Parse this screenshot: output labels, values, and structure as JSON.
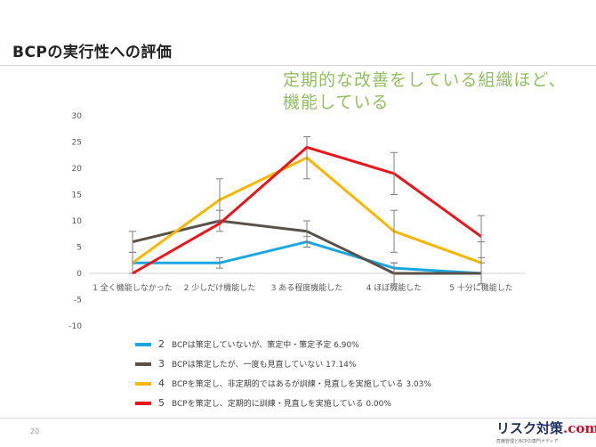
{
  "slide": {
    "title": "BCPの実行性への評価",
    "callout_line1": "定期的な改善をしている組織ほど、",
    "callout_line2": "機能している",
    "callout_color": "#8fbf5f",
    "page_number": "20"
  },
  "logo": {
    "main": "リスク対策",
    "suffix": ".com",
    "sub": "危機管理とBCPの専門メディア"
  },
  "chart_data": {
    "type": "line",
    "categories": [
      "1 全く機能しなかった",
      "2 少しだけ機能した",
      "3 ある程度機能した",
      "4 ほぼ機能した",
      "5 十分に機能した"
    ],
    "ylim": [
      -10,
      30
    ],
    "yticks": [
      -10,
      -5,
      0,
      5,
      10,
      15,
      20,
      25,
      30
    ],
    "grid": false,
    "legend_position": "bottom",
    "series": [
      {
        "number": "2",
        "name": "BCPは策定していないが、策定中・策定予定 6.90%",
        "color": "#1aa7e0",
        "values": [
          2,
          2,
          6,
          1,
          0
        ],
        "errors": [
          0,
          1,
          1,
          1,
          0
        ]
      },
      {
        "number": "3",
        "name": "BCPは策定したが、一度も見直していない 17.14%",
        "color": "#595049",
        "values": [
          6,
          10,
          8,
          0,
          0
        ],
        "errors": [
          2,
          2,
          2,
          2,
          2
        ]
      },
      {
        "number": "4",
        "name": "BCPを策定し、非定期的ではあるが訓練・見直しを実施している 3.03%",
        "color": "#f5b700",
        "values": [
          2,
          14,
          22,
          8,
          2
        ],
        "errors": [
          2,
          4,
          4,
          4,
          4
        ]
      },
      {
        "number": "5",
        "name": "BCPを策定し、定期的に訓練・見直しを実施している 0.00%",
        "color": "#e8161b",
        "values": [
          0,
          9.5,
          24,
          19,
          7
        ],
        "errors": [
          0,
          0,
          0,
          4,
          4
        ]
      }
    ]
  }
}
